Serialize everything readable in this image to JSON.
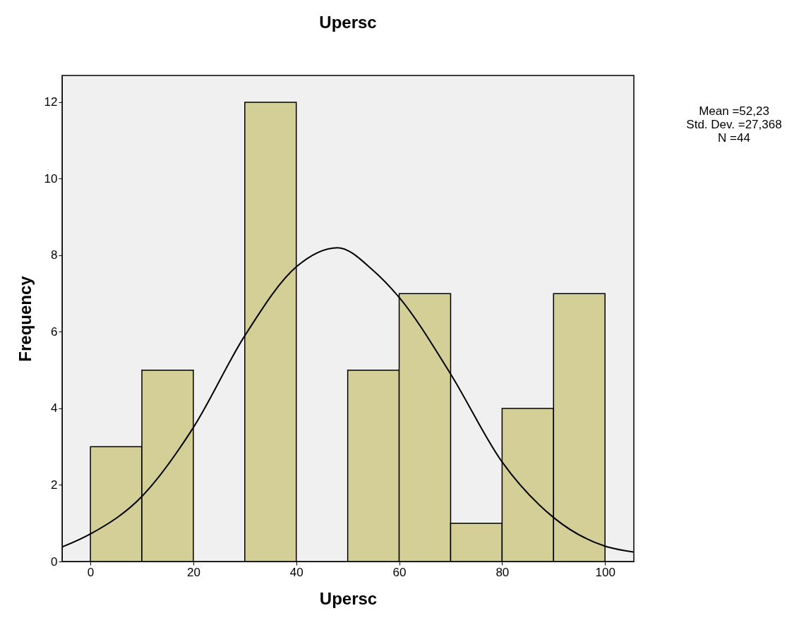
{
  "chart_data": {
    "type": "histogram",
    "title": "Upersc",
    "xlabel": "Upersc",
    "ylabel": "Frequency",
    "bins": [
      0,
      10,
      20,
      30,
      40,
      50,
      60,
      70,
      80,
      90,
      100
    ],
    "values": [
      3,
      5,
      0,
      12,
      0,
      5,
      7,
      1,
      4,
      7
    ],
    "color": "#d3cf96",
    "series": [
      {
        "type": "line",
        "color": "#000000",
        "x": [
          -5.5,
          0,
          10,
          20,
          30,
          40,
          48,
          55,
          60,
          70,
          80,
          90,
          100,
          105.5
        ],
        "values": [
          0.38,
          0.72,
          1.7,
          3.5,
          5.9,
          7.7,
          8.2,
          7.6,
          6.9,
          4.9,
          2.6,
          1.15,
          0.4,
          0.25
        ]
      }
    ],
    "xlim": [
      -5.5,
      105.6
    ],
    "ylim": [
      0,
      12.7
    ],
    "xticks": [
      0,
      20,
      40,
      60,
      80,
      100
    ],
    "yticks": [
      0,
      2,
      4,
      6,
      8,
      10,
      12
    ],
    "grid": false,
    "annotations": [
      "Mean =52,23",
      "Std. Dev. =27,368",
      "N =44"
    ]
  }
}
